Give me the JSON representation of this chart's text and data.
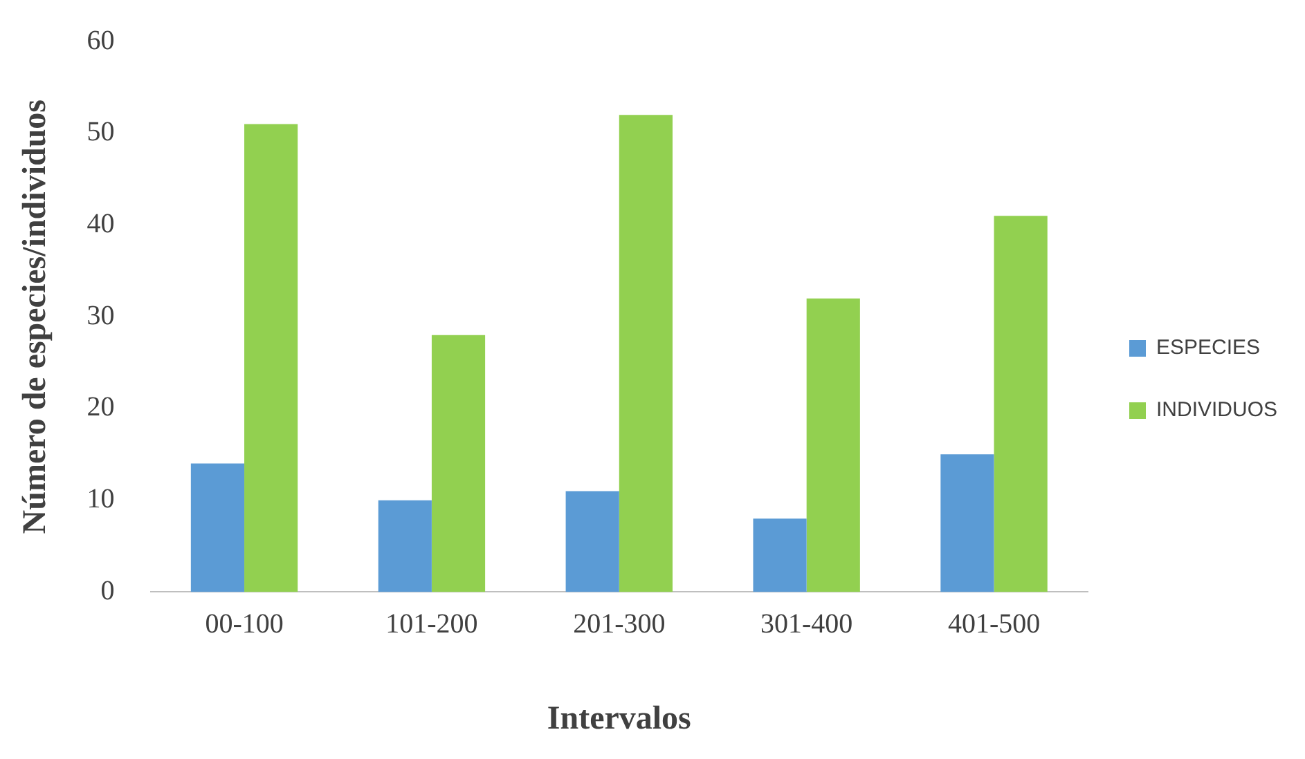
{
  "chart_data": {
    "type": "bar",
    "xlabel": "Intervalos",
    "ylabel": "Número de especies/individuos",
    "categories": [
      "00-100",
      "101-200",
      "201-300",
      "301-400",
      "401-500"
    ],
    "series": [
      {
        "name": "ESPECIES",
        "color": "#5b9bd5",
        "values": [
          14,
          10,
          11,
          8,
          15
        ]
      },
      {
        "name": "INDIVIDUOS",
        "color": "#92d050",
        "values": [
          51,
          28,
          52,
          32,
          41
        ]
      }
    ],
    "ylim": [
      0,
      60
    ],
    "yticks": [
      0,
      10,
      20,
      30,
      40,
      50,
      60
    ],
    "grid": false,
    "legend": "right"
  }
}
